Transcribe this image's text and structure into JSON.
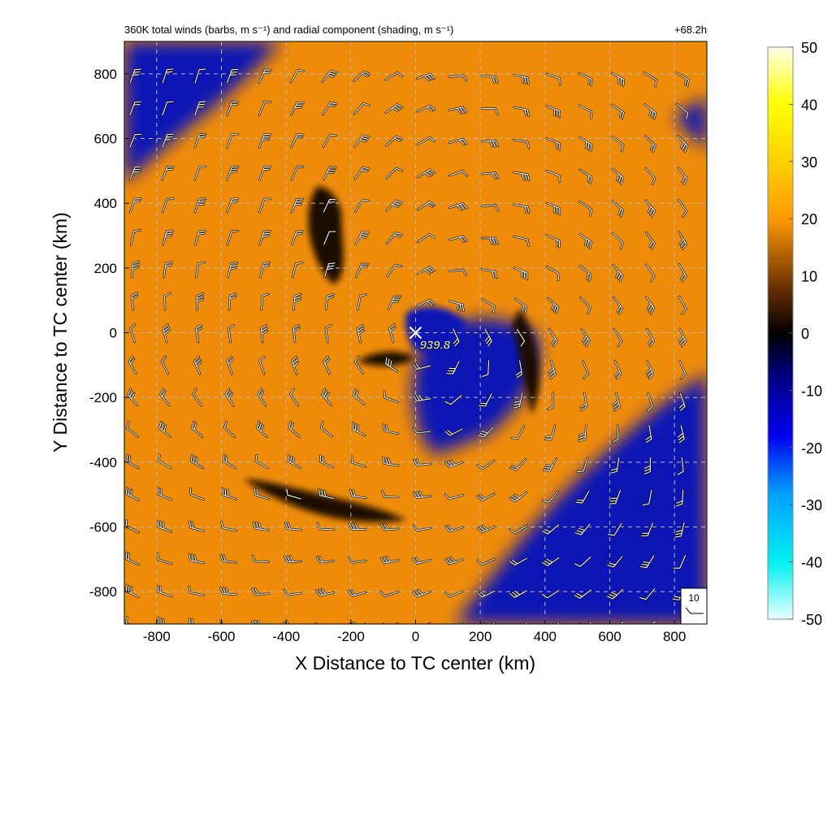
{
  "chart_data": {
    "type": "heatmap",
    "title": "360K total winds (barbs, m s⁻¹) and radial component (shading, m s⁻¹)",
    "forecast_time": "+68.2h",
    "xlabel": "X Distance to TC center (km)",
    "ylabel": "Y Distance to TC center (km)",
    "xlim": [
      -900,
      900
    ],
    "ylim": [
      -900,
      900
    ],
    "xticks": [
      -800,
      -600,
      -400,
      -200,
      0,
      200,
      400,
      600,
      800
    ],
    "yticks": [
      -800,
      -600,
      -400,
      -200,
      0,
      200,
      400,
      600,
      800
    ],
    "grid": true,
    "center_marker": {
      "x": 0,
      "y": 0,
      "label": "939.8"
    },
    "reference_barb_label": "10",
    "colorbar": {
      "range": [
        -50,
        50
      ],
      "ticks": [
        50,
        40,
        30,
        20,
        10,
        0,
        -10,
        -20,
        -30,
        -40,
        -50
      ],
      "colors": [
        "#e8ffff",
        "#00f0f0",
        "#00a0ff",
        "#0000ee",
        "#000088",
        "#000000",
        "#6a3000",
        "#ff9a00",
        "#ffd000",
        "#ffff00",
        "#ffffe8"
      ]
    },
    "shading_colors": {
      "inflow": "#0a14b4",
      "outflow": "#ee8c0a",
      "neutral": "#1a0a00"
    }
  }
}
